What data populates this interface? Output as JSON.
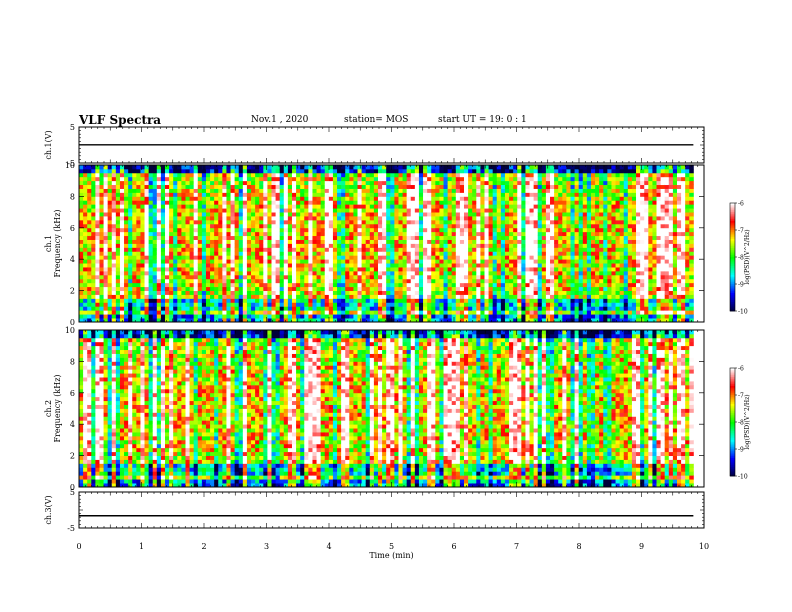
{
  "header": {
    "title": "VLF Spectra",
    "date": "Nov.1 , 2020",
    "station": "station= MOS",
    "start": "start UT = 19: 0 : 1"
  },
  "chart_data": [
    {
      "type": "line",
      "title": "",
      "ylabel": "ch.1(V)",
      "ylim": [
        -5,
        5
      ],
      "yticks": [
        "5",
        "-5"
      ],
      "series": [
        {
          "x": [
            0,
            9.83
          ],
          "y": [
            0.05,
            0.05
          ]
        }
      ]
    },
    {
      "type": "heatmap",
      "ylabel": "ch.1 Frequency (kHz)",
      "ylim": [
        0,
        10
      ],
      "yticks": [
        "0",
        "2",
        "4",
        "6",
        "8",
        "10"
      ],
      "xlim": [
        0,
        10
      ],
      "data_end_min": 9.83,
      "colorbar": {
        "label": "log(PSD)(V^2/Hz)",
        "ticks": [
          "-6",
          "-7",
          "-8",
          "-9",
          "-10"
        ],
        "range": [
          -10,
          -6
        ]
      },
      "colormap": [
        "#00003a",
        "#0000ff",
        "#00ffff",
        "#00ff00",
        "#ffff00",
        "#ff0000",
        "#ffffff"
      ]
    },
    {
      "type": "heatmap",
      "ylabel": "ch.2 Frequency (kHz)",
      "ylim": [
        0,
        10
      ],
      "yticks": [
        "0",
        "2",
        "4",
        "6",
        "8",
        "10"
      ],
      "xlim": [
        0,
        10
      ],
      "data_end_min": 9.83,
      "colorbar": {
        "label": "log(PSD)(V^2/Hz)",
        "ticks": [
          "-6",
          "-7",
          "-8",
          "-9",
          "-10"
        ],
        "range": [
          -10,
          -6
        ]
      },
      "colormap": [
        "#00003a",
        "#0000ff",
        "#00ffff",
        "#00ff00",
        "#ffff00",
        "#ff0000",
        "#ffffff"
      ]
    },
    {
      "type": "line",
      "ylabel": "ch.3(V)",
      "ylim": [
        -5,
        5
      ],
      "yticks": [
        "5",
        "-5"
      ],
      "series": [
        {
          "x": [
            0,
            9.83
          ],
          "y": [
            -1.6,
            -1.6
          ]
        }
      ]
    }
  ],
  "xaxis": {
    "label": "Time (min)",
    "ticks": [
      "0",
      "1",
      "2",
      "3",
      "4",
      "5",
      "6",
      "7",
      "8",
      "9",
      "10"
    ],
    "range": [
      0,
      10
    ]
  }
}
